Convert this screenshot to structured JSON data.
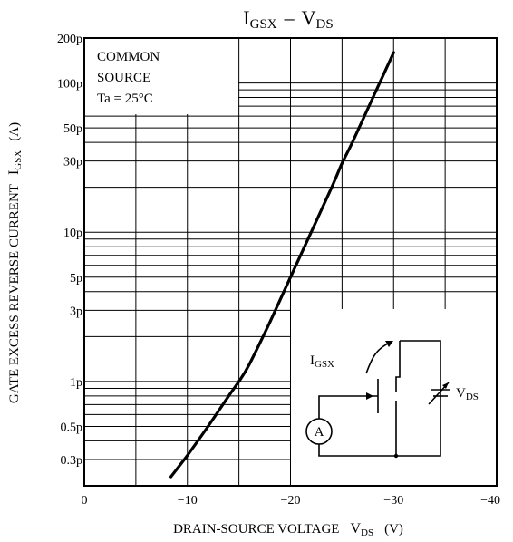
{
  "chart_data": {
    "type": "line",
    "title": {
      "main": "I",
      "main_sub": "GSX",
      "dash": "–",
      "right": "V",
      "right_sub": "DS"
    },
    "ylabel": {
      "text": "GATE EXCESS REVERSE CURRENT",
      "sym": "I",
      "sym_sub": "GSX",
      "unit": "(A)"
    },
    "xlabel": {
      "text": "DRAIN-SOURCE VOLTAGE",
      "sym": "V",
      "sym_sub": "DS",
      "unit": "(V)"
    },
    "x_scale": "linear",
    "y_scale": "log",
    "xlim": [
      0,
      -40
    ],
    "ylim": [
      2e-13,
      2e-10
    ],
    "x_ticks": [
      {
        "value": 0,
        "label": "0"
      },
      {
        "value": -10,
        "label": "−10"
      },
      {
        "value": -20,
        "label": "−20"
      },
      {
        "value": -30,
        "label": "−30"
      },
      {
        "value": -40,
        "label": "−40"
      }
    ],
    "y_ticks": [
      {
        "value": 2e-10,
        "label": "200p"
      },
      {
        "value": 1e-10,
        "label": "100p"
      },
      {
        "value": 5e-11,
        "label": "50p"
      },
      {
        "value": 3e-11,
        "label": "30p"
      },
      {
        "value": 1e-11,
        "label": "10p"
      },
      {
        "value": 5e-12,
        "label": "5p"
      },
      {
        "value": 3e-12,
        "label": "3p"
      },
      {
        "value": 1e-12,
        "label": "1p"
      },
      {
        "value": 5e-13,
        "label": "0.5p"
      },
      {
        "value": 3e-13,
        "label": "0.3p"
      }
    ],
    "annotation": [
      "COMMON",
      "SOURCE",
      "Ta = 25°C"
    ],
    "inset": {
      "current_label": "I",
      "current_sub": "GSX",
      "voltage_label": "V",
      "voltage_sub": "DS",
      "meter": "A"
    },
    "grid": true,
    "series": [
      {
        "x": [
          -8.4,
          -10,
          -12,
          -14,
          -15,
          -16,
          -18,
          -20,
          -22,
          -24,
          -25,
          -26,
          -28,
          -30
        ],
        "y": [
          2.3e-13,
          3.2e-13,
          5e-13,
          8e-13,
          1e-12,
          1.3e-12,
          2.5e-12,
          5e-12,
          1e-11,
          2e-11,
          2.9e-11,
          4e-11,
          8e-11,
          1.6e-10
        ]
      }
    ]
  }
}
